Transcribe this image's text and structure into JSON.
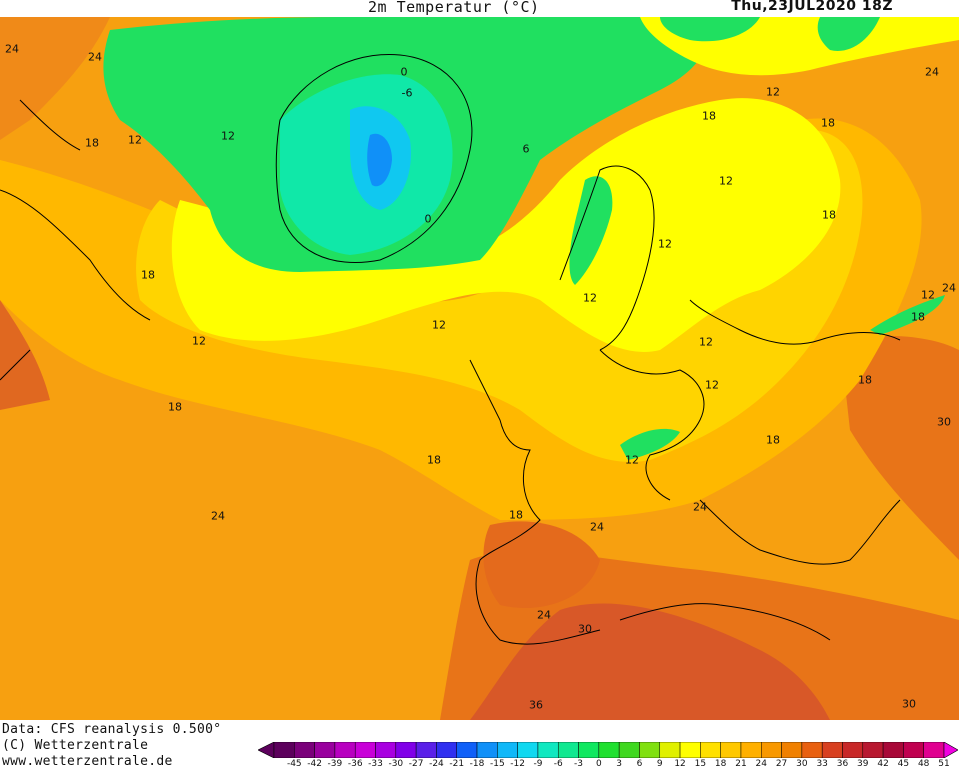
{
  "header": {
    "title": "2m Temperatur (°C)",
    "datetime": "Thu,23JUL2020 18Z"
  },
  "footer": {
    "line1": "Data: CFS reanalysis 0.500°",
    "line2": "(C) Wetterzentrale",
    "line3": "www.wetterzentrale.de"
  },
  "map": {
    "contour_labels": [
      "24",
      "24",
      "12",
      "18",
      "12",
      "18",
      "12",
      "18",
      "24",
      "12",
      "18",
      "12",
      "18",
      "24",
      "12",
      "18",
      "18",
      "24",
      "30",
      "18",
      "-6",
      "0",
      "0",
      "6",
      "12",
      "12",
      "12",
      "12",
      "18",
      "24",
      "24",
      "30",
      "30",
      "36",
      "18",
      "12",
      "12",
      "24",
      "18"
    ]
  },
  "legend": {
    "ticks": [
      "-45",
      "-42",
      "-39",
      "-36",
      "-33",
      "-30",
      "-27",
      "-24",
      "-21",
      "-18",
      "-15",
      "-12",
      "-9",
      "-6",
      "-3",
      "0",
      "3",
      "6",
      "9",
      "12",
      "15",
      "18",
      "21",
      "24",
      "27",
      "30",
      "33",
      "36",
      "39",
      "42",
      "45",
      "48",
      "51"
    ],
    "colors": [
      "#5c005c",
      "#7a007a",
      "#99009e",
      "#b800c0",
      "#c800d8",
      "#a800e0",
      "#8000e8",
      "#5a20e8",
      "#3030f0",
      "#1060f8",
      "#1090f8",
      "#10b8f8",
      "#10d8f0",
      "#10e8c0",
      "#10e890",
      "#10e860",
      "#20e030",
      "#40d820",
      "#80e010",
      "#e0f000",
      "#ffff00",
      "#ffe000",
      "#ffc800",
      "#ffb000",
      "#f89800",
      "#f08000",
      "#e86010",
      "#d84020",
      "#c82828",
      "#b81830",
      "#a80838",
      "#c00050",
      "#e00090"
    ],
    "arrow_color": "#f000e0"
  }
}
